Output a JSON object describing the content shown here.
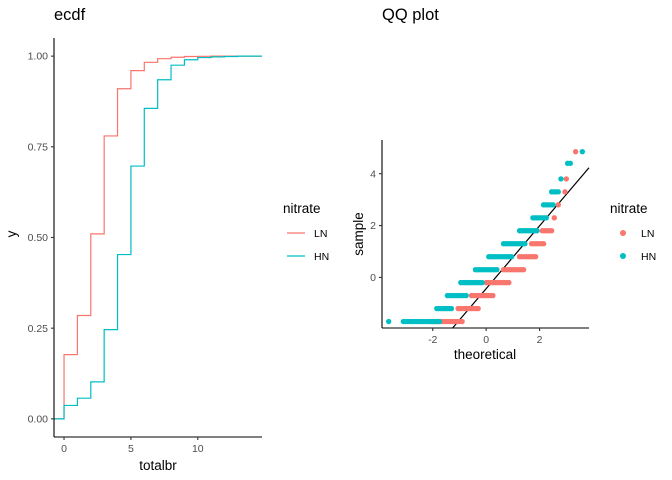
{
  "chart_data": [
    {
      "type": "step",
      "title": "ecdf",
      "xlabel": "totalbr",
      "ylabel": "y",
      "xlim": [
        -0.75,
        14.8
      ],
      "ylim": [
        -0.05,
        1.05
      ],
      "x_ticks": [
        0,
        5,
        10
      ],
      "y_ticks": [
        0.0,
        0.25,
        0.5,
        0.75,
        1.0
      ],
      "y_tick_labels": [
        "0.00",
        "0.25",
        "0.50",
        "0.75",
        "1.00"
      ],
      "grid": false,
      "legend": {
        "title": "nitrate",
        "position": "right"
      },
      "series": [
        {
          "name": "LN",
          "color": "#F8766D",
          "x": [
            -0.75,
            0,
            1,
            2,
            3,
            4,
            5,
            6,
            7,
            8,
            9,
            10,
            11,
            12,
            13,
            14.8
          ],
          "y": [
            0.0,
            0.177,
            0.285,
            0.51,
            0.78,
            0.91,
            0.96,
            0.983,
            0.993,
            0.997,
            0.999,
            0.9995,
            1.0,
            1.0,
            1.0,
            1.0
          ]
        },
        {
          "name": "HN",
          "color": "#00BFC4",
          "x": [
            -0.75,
            0,
            1,
            2,
            3,
            4,
            5,
            6,
            7,
            8,
            9,
            10,
            11,
            12,
            13,
            14.8
          ],
          "y": [
            0.0,
            0.037,
            0.057,
            0.102,
            0.246,
            0.453,
            0.697,
            0.856,
            0.935,
            0.975,
            0.99,
            0.996,
            0.998,
            0.999,
            1.0,
            1.0
          ]
        }
      ]
    },
    {
      "type": "scatter",
      "title": "QQ plot",
      "xlabel": "theoretical",
      "ylabel": "sample",
      "xlim": [
        -3.9,
        3.85
      ],
      "ylim": [
        -1.95,
        5.3
      ],
      "x_ticks": [
        -2,
        0,
        2
      ],
      "y_ticks": [
        0,
        2,
        4
      ],
      "grid": false,
      "legend": {
        "title": "nitrate",
        "position": "right"
      },
      "reference_line": {
        "slope": 1.21,
        "intercept": -0.43
      },
      "series": [
        {
          "name": "LN",
          "color": "#F8766D",
          "segments": [
            {
              "y": -1.7,
              "x_from": -2.05,
              "x_to": -0.9
            },
            {
              "y": -1.2,
              "x_from": -1.05,
              "x_to": -0.3
            },
            {
              "y": -0.7,
              "x_from": -0.55,
              "x_to": 0.25
            },
            {
              "y": -0.2,
              "x_from": 0.0,
              "x_to": 0.85
            },
            {
              "y": 0.3,
              "x_from": 0.65,
              "x_to": 1.4
            },
            {
              "y": 0.8,
              "x_from": 1.25,
              "x_to": 1.85
            },
            {
              "y": 1.3,
              "x_from": 1.7,
              "x_to": 2.15
            },
            {
              "y": 1.8,
              "x_from": 2.1,
              "x_to": 2.45
            }
          ],
          "points": [
            [
              2.55,
              2.3
            ],
            [
              2.7,
              2.8
            ],
            [
              2.95,
              3.3
            ],
            [
              3.0,
              3.8
            ],
            [
              3.35,
              4.85
            ]
          ]
        },
        {
          "name": "HN",
          "color": "#00BFC4",
          "segments": [
            {
              "y": -1.7,
              "x_from": -3.1,
              "x_to": -1.75
            },
            {
              "y": -1.2,
              "x_from": -1.85,
              "x_to": -1.3
            },
            {
              "y": -0.7,
              "x_from": -1.45,
              "x_to": -0.75
            },
            {
              "y": -0.2,
              "x_from": -0.95,
              "x_to": -0.15
            },
            {
              "y": 0.3,
              "x_from": -0.4,
              "x_to": 0.4
            },
            {
              "y": 0.8,
              "x_from": 0.1,
              "x_to": 0.95
            },
            {
              "y": 1.3,
              "x_from": 0.65,
              "x_to": 1.45
            },
            {
              "y": 1.8,
              "x_from": 1.25,
              "x_to": 1.9
            },
            {
              "y": 2.3,
              "x_from": 1.75,
              "x_to": 2.25
            },
            {
              "y": 2.8,
              "x_from": 2.15,
              "x_to": 2.5
            },
            {
              "y": 3.3,
              "x_from": 2.45,
              "x_to": 2.7
            }
          ],
          "points": [
            [
              -3.65,
              -1.7
            ],
            [
              2.8,
              3.8
            ],
            [
              3.05,
              4.4
            ],
            [
              3.15,
              4.4
            ],
            [
              3.6,
              4.85
            ]
          ]
        }
      ]
    }
  ]
}
